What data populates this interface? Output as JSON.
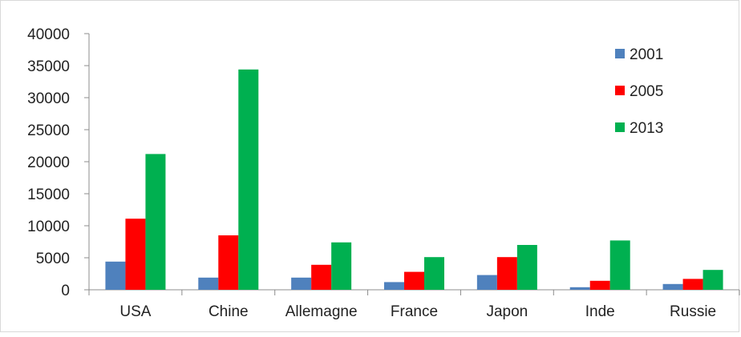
{
  "chart_data": {
    "type": "bar",
    "categories": [
      "USA",
      "Chine",
      "Allemagne",
      "France",
      "Japon",
      "Inde",
      "Russie"
    ],
    "series": [
      {
        "name": "2001",
        "color": "#4f81bd",
        "values": [
          4400,
          1900,
          1900,
          1200,
          2300,
          400,
          900
        ]
      },
      {
        "name": "2005",
        "color": "#ff0000",
        "values": [
          11100,
          8500,
          3900,
          2800,
          5100,
          1400,
          1700
        ]
      },
      {
        "name": "2013",
        "color": "#00b050",
        "values": [
          21200,
          34400,
          7400,
          5100,
          7000,
          7700,
          3100
        ]
      }
    ],
    "y_ticks": [
      "0",
      "5000",
      "10000",
      "15000",
      "20000",
      "25000",
      "30000",
      "35000",
      "40000"
    ],
    "ylim": [
      0,
      40000
    ],
    "grid": false,
    "legend_position": "top-right"
  }
}
